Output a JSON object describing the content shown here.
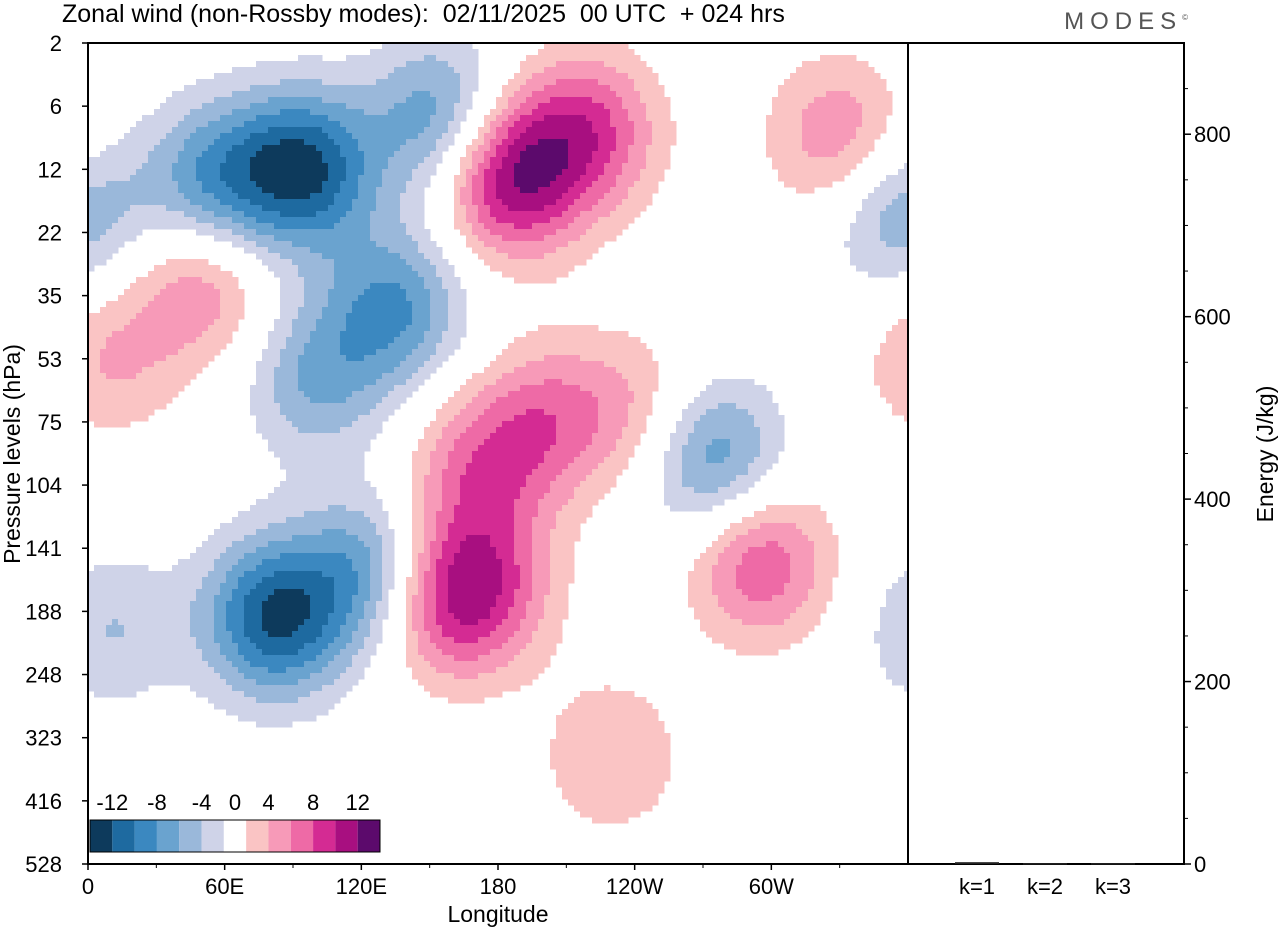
{
  "header": {
    "title": "Zonal wind (non-Rossby modes):  02/11/2025  00 UTC  + 024 hrs",
    "logo": "MODES",
    "logo_mark": "©"
  },
  "chart_data": {
    "type": "heatmap",
    "title": "Zonal wind (non-Rossby modes):  02/11/2025  00 UTC  + 024 hrs",
    "xlabel": "Longitude",
    "ylabel": "Pressure levels (hPa)",
    "x_ticks": [
      "0",
      "60E",
      "120E",
      "180",
      "120W",
      "60W"
    ],
    "x_tick_degrees": [
      0,
      60,
      120,
      180,
      240,
      300
    ],
    "x_range_degrees": [
      0,
      360
    ],
    "y_ticks": [
      "2",
      "6",
      "12",
      "22",
      "35",
      "53",
      "75",
      "104",
      "141",
      "188",
      "248",
      "323",
      "416",
      "528"
    ],
    "colorbar": {
      "labels": [
        "-12",
        "-8",
        "-4",
        "0",
        "4",
        "8",
        "12"
      ],
      "levels": [
        -14,
        -12,
        -10,
        -8,
        -6,
        -4,
        -2,
        2,
        4,
        6,
        8,
        10,
        12,
        14
      ],
      "colors": [
        "#0d3a5c",
        "#1e6aa0",
        "#3b88c0",
        "#6aa3cf",
        "#9ab8da",
        "#cfd3e8",
        "#ffffff",
        "#fac4c4",
        "#f79ab8",
        "#ee6aa6",
        "#d42b93",
        "#a80f80",
        "#5c0a6c"
      ]
    },
    "features": [
      {
        "sign": "negative",
        "peak": -12,
        "lon": 95,
        "level_index": 2.0
      },
      {
        "sign": "negative",
        "peak": -8,
        "lon": 55,
        "level_index": 2.2
      },
      {
        "sign": "negative",
        "peak": -8,
        "lon": 155,
        "level_index": 1.2
      },
      {
        "sign": "positive",
        "peak": 12,
        "lon": 185,
        "level_index": 2.1
      },
      {
        "sign": "positive",
        "peak": 8,
        "lon": 220,
        "level_index": 1.4
      },
      {
        "sign": "positive",
        "peak": 6,
        "lon": 330,
        "level_index": 1.5
      },
      {
        "sign": "negative",
        "peak": -6,
        "lon": 355,
        "level_index": 2.7
      },
      {
        "sign": "positive",
        "peak": 6,
        "lon": 50,
        "level_index": 3.8
      },
      {
        "sign": "positive",
        "peak": 4,
        "lon": 10,
        "level_index": 5.0
      },
      {
        "sign": "negative",
        "peak": -8,
        "lon": 135,
        "level_index": 4.2
      },
      {
        "sign": "negative",
        "peak": -6,
        "lon": 100,
        "level_index": 5.3
      },
      {
        "sign": "positive",
        "peak": 6,
        "lon": 200,
        "level_index": 6.0
      },
      {
        "sign": "positive",
        "peak": 4,
        "lon": 240,
        "level_index": 5.8
      },
      {
        "sign": "negative",
        "peak": -8,
        "lon": 275,
        "level_index": 6.6
      },
      {
        "sign": "positive",
        "peak": 6,
        "lon": 170,
        "level_index": 6.8
      },
      {
        "sign": "negative",
        "peak": -12,
        "lon": 82,
        "level_index": 9.1
      },
      {
        "sign": "negative",
        "peak": -8,
        "lon": 125,
        "level_index": 8.4
      },
      {
        "sign": "positive",
        "peak": 8,
        "lon": 155,
        "level_index": 8.8
      },
      {
        "sign": "positive",
        "peak": 6,
        "lon": 175,
        "level_index": 8.6
      },
      {
        "sign": "positive",
        "peak": 8,
        "lon": 295,
        "level_index": 8.2
      },
      {
        "sign": "positive",
        "peak": 4,
        "lon": 230,
        "level_index": 11.3
      },
      {
        "sign": "negative",
        "peak": -4,
        "lon": 10,
        "level_index": 9.3
      }
    ],
    "energy_panel": {
      "ylabel": "Energy (J/kg)",
      "y_ticks": [
        "0",
        "200",
        "400",
        "600",
        "800"
      ],
      "ylim": [
        0,
        900
      ],
      "categories": [
        "k=1",
        "k=2",
        "k=3"
      ],
      "values": [
        2,
        1,
        1
      ]
    }
  }
}
